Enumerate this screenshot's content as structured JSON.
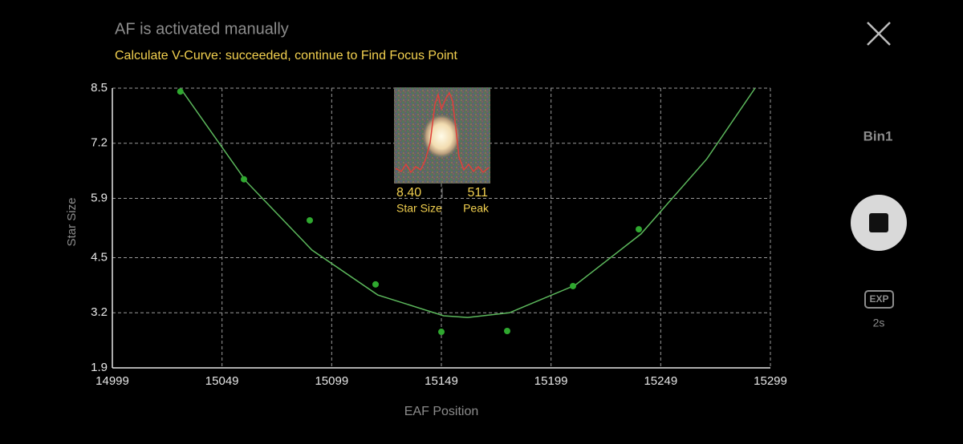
{
  "status": "AF is activated manually",
  "message": "Calculate V-Curve: succeeded, continue to Find Focus Point",
  "chart_data": {
    "type": "scatter",
    "x_label": "EAF Position",
    "y_label": "Star Size",
    "xlim": [
      14999,
      15299
    ],
    "ylim": [
      1.9,
      8.5
    ],
    "xticks": [
      14999,
      15049,
      15099,
      15149,
      15199,
      15249,
      15299
    ],
    "yticks": [
      1.9,
      3.2,
      4.5,
      5.9,
      7.2,
      8.5
    ],
    "grid": true,
    "x": [
      15030,
      15059,
      15089,
      15119,
      15149,
      15179,
      15209,
      15239
    ],
    "values": [
      8.42,
      6.35,
      5.38,
      3.87,
      2.75,
      2.77,
      3.83,
      5.17
    ],
    "color": "#2fa82f",
    "fit_curve": {
      "x": [
        15030,
        15060,
        15090,
        15120,
        15150,
        15161,
        15180,
        15210,
        15240,
        15270,
        15292
      ],
      "values": [
        8.5,
        6.3,
        4.68,
        3.62,
        3.13,
        3.09,
        3.2,
        3.85,
        5.06,
        6.83,
        8.5
      ],
      "color": "#5cb85c"
    }
  },
  "star_preview": {
    "star_size": "8.40",
    "star_size_label": "Star Size",
    "peak": "511",
    "peak_label": "Peak"
  },
  "side_panel": {
    "bin": "Bin1",
    "exp_icon": "EXP",
    "exposure": "2s"
  }
}
